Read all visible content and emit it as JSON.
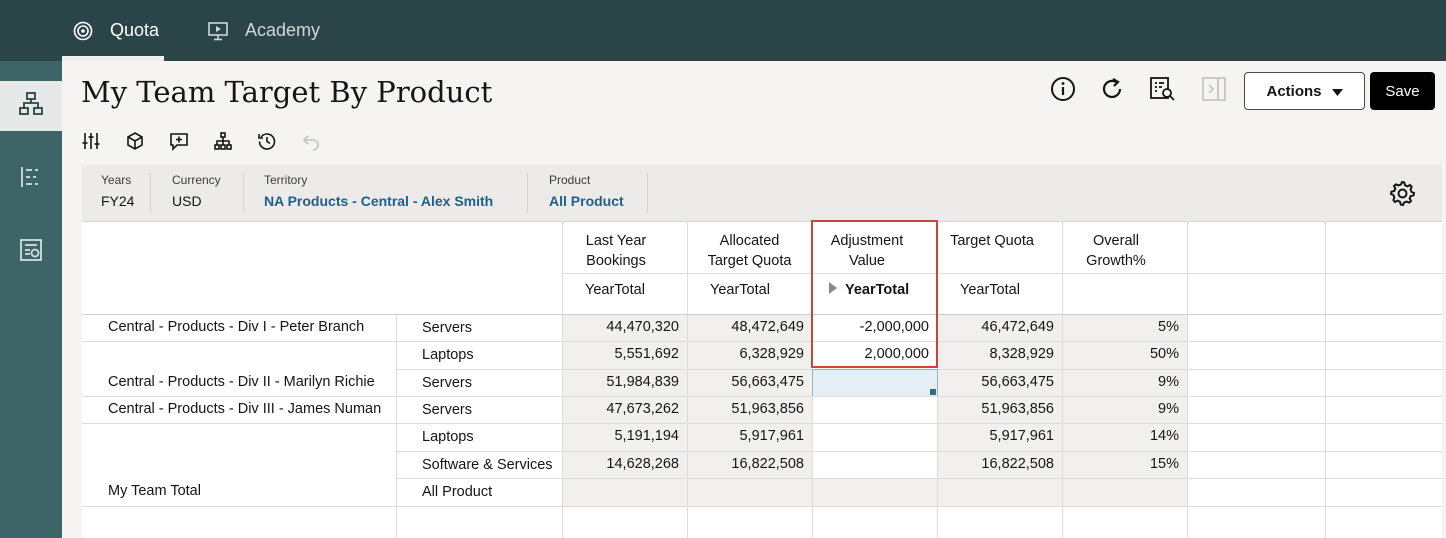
{
  "nav": {
    "tabs": [
      {
        "label": "Quota",
        "icon": "target-icon",
        "active": true
      },
      {
        "label": "Academy",
        "icon": "presentation-icon",
        "active": false
      }
    ]
  },
  "page": {
    "title": "My Team Target By Product",
    "actions_label": "Actions",
    "save_label": "Save"
  },
  "pov": {
    "years": {
      "label": "Years",
      "value": "FY24"
    },
    "currency": {
      "label": "Currency",
      "value": "USD"
    },
    "territory": {
      "label": "Territory",
      "value": "NA Products - Central - Alex Smith"
    },
    "product": {
      "label": "Product",
      "value": "All Product"
    }
  },
  "grid": {
    "columns": [
      {
        "label": "Last Year Bookings",
        "sub": "YearTotal"
      },
      {
        "label": "Allocated Target Quota",
        "sub": "YearTotal"
      },
      {
        "label": "Adjustment Value",
        "sub": "YearTotal"
      },
      {
        "label": "Target Quota",
        "sub": "YearTotal"
      },
      {
        "label": "Overall Growth%",
        "sub": ""
      }
    ],
    "column_labels": {
      "c0a": "Last Year",
      "c0b": "Bookings",
      "c1a": "Allocated",
      "c1b": "Target Quota",
      "c2a": "Adjustment",
      "c2b": "Value",
      "c3a": "Target Quota",
      "c4a": "Overall",
      "c4b": "Growth%"
    },
    "rows": [
      {
        "territory": "Central - Products - Div I - Peter Branch",
        "product": "Servers",
        "lyb": "44,470,320",
        "atq": "48,472,649",
        "adj": "-2,000,000",
        "tq": "46,472,649",
        "growth": "5%"
      },
      {
        "territory": "",
        "product": "Laptops",
        "lyb": "5,551,692",
        "atq": "6,328,929",
        "adj": "2,000,000",
        "tq": "8,328,929",
        "growth": "50%"
      },
      {
        "territory": "Central - Products - Div II - Marilyn Richie",
        "product": "Servers",
        "lyb": "51,984,839",
        "atq": "56,663,475",
        "adj": "",
        "tq": "56,663,475",
        "growth": "9%"
      },
      {
        "territory": "Central - Products - Div III - James Numan",
        "product": "Servers",
        "lyb": "47,673,262",
        "atq": "51,963,856",
        "adj": "",
        "tq": "51,963,856",
        "growth": "9%"
      },
      {
        "territory": "",
        "product": "Laptops",
        "lyb": "5,191,194",
        "atq": "5,917,961",
        "adj": "",
        "tq": "5,917,961",
        "growth": "14%"
      },
      {
        "territory": "",
        "product": "Software & Services",
        "lyb": "14,628,268",
        "atq": "16,822,508",
        "adj": "",
        "tq": "16,822,508",
        "growth": "15%"
      },
      {
        "territory": "My Team Total",
        "product": "All Product",
        "lyb": "",
        "atq": "",
        "adj": "",
        "tq": "",
        "growth": ""
      }
    ]
  },
  "colors": {
    "topbar": "#2b4447",
    "rail": "#3d6467",
    "link": "#1f5f8b",
    "highlight_border": "#c9463d",
    "selected_cell": "#e4eef3"
  }
}
